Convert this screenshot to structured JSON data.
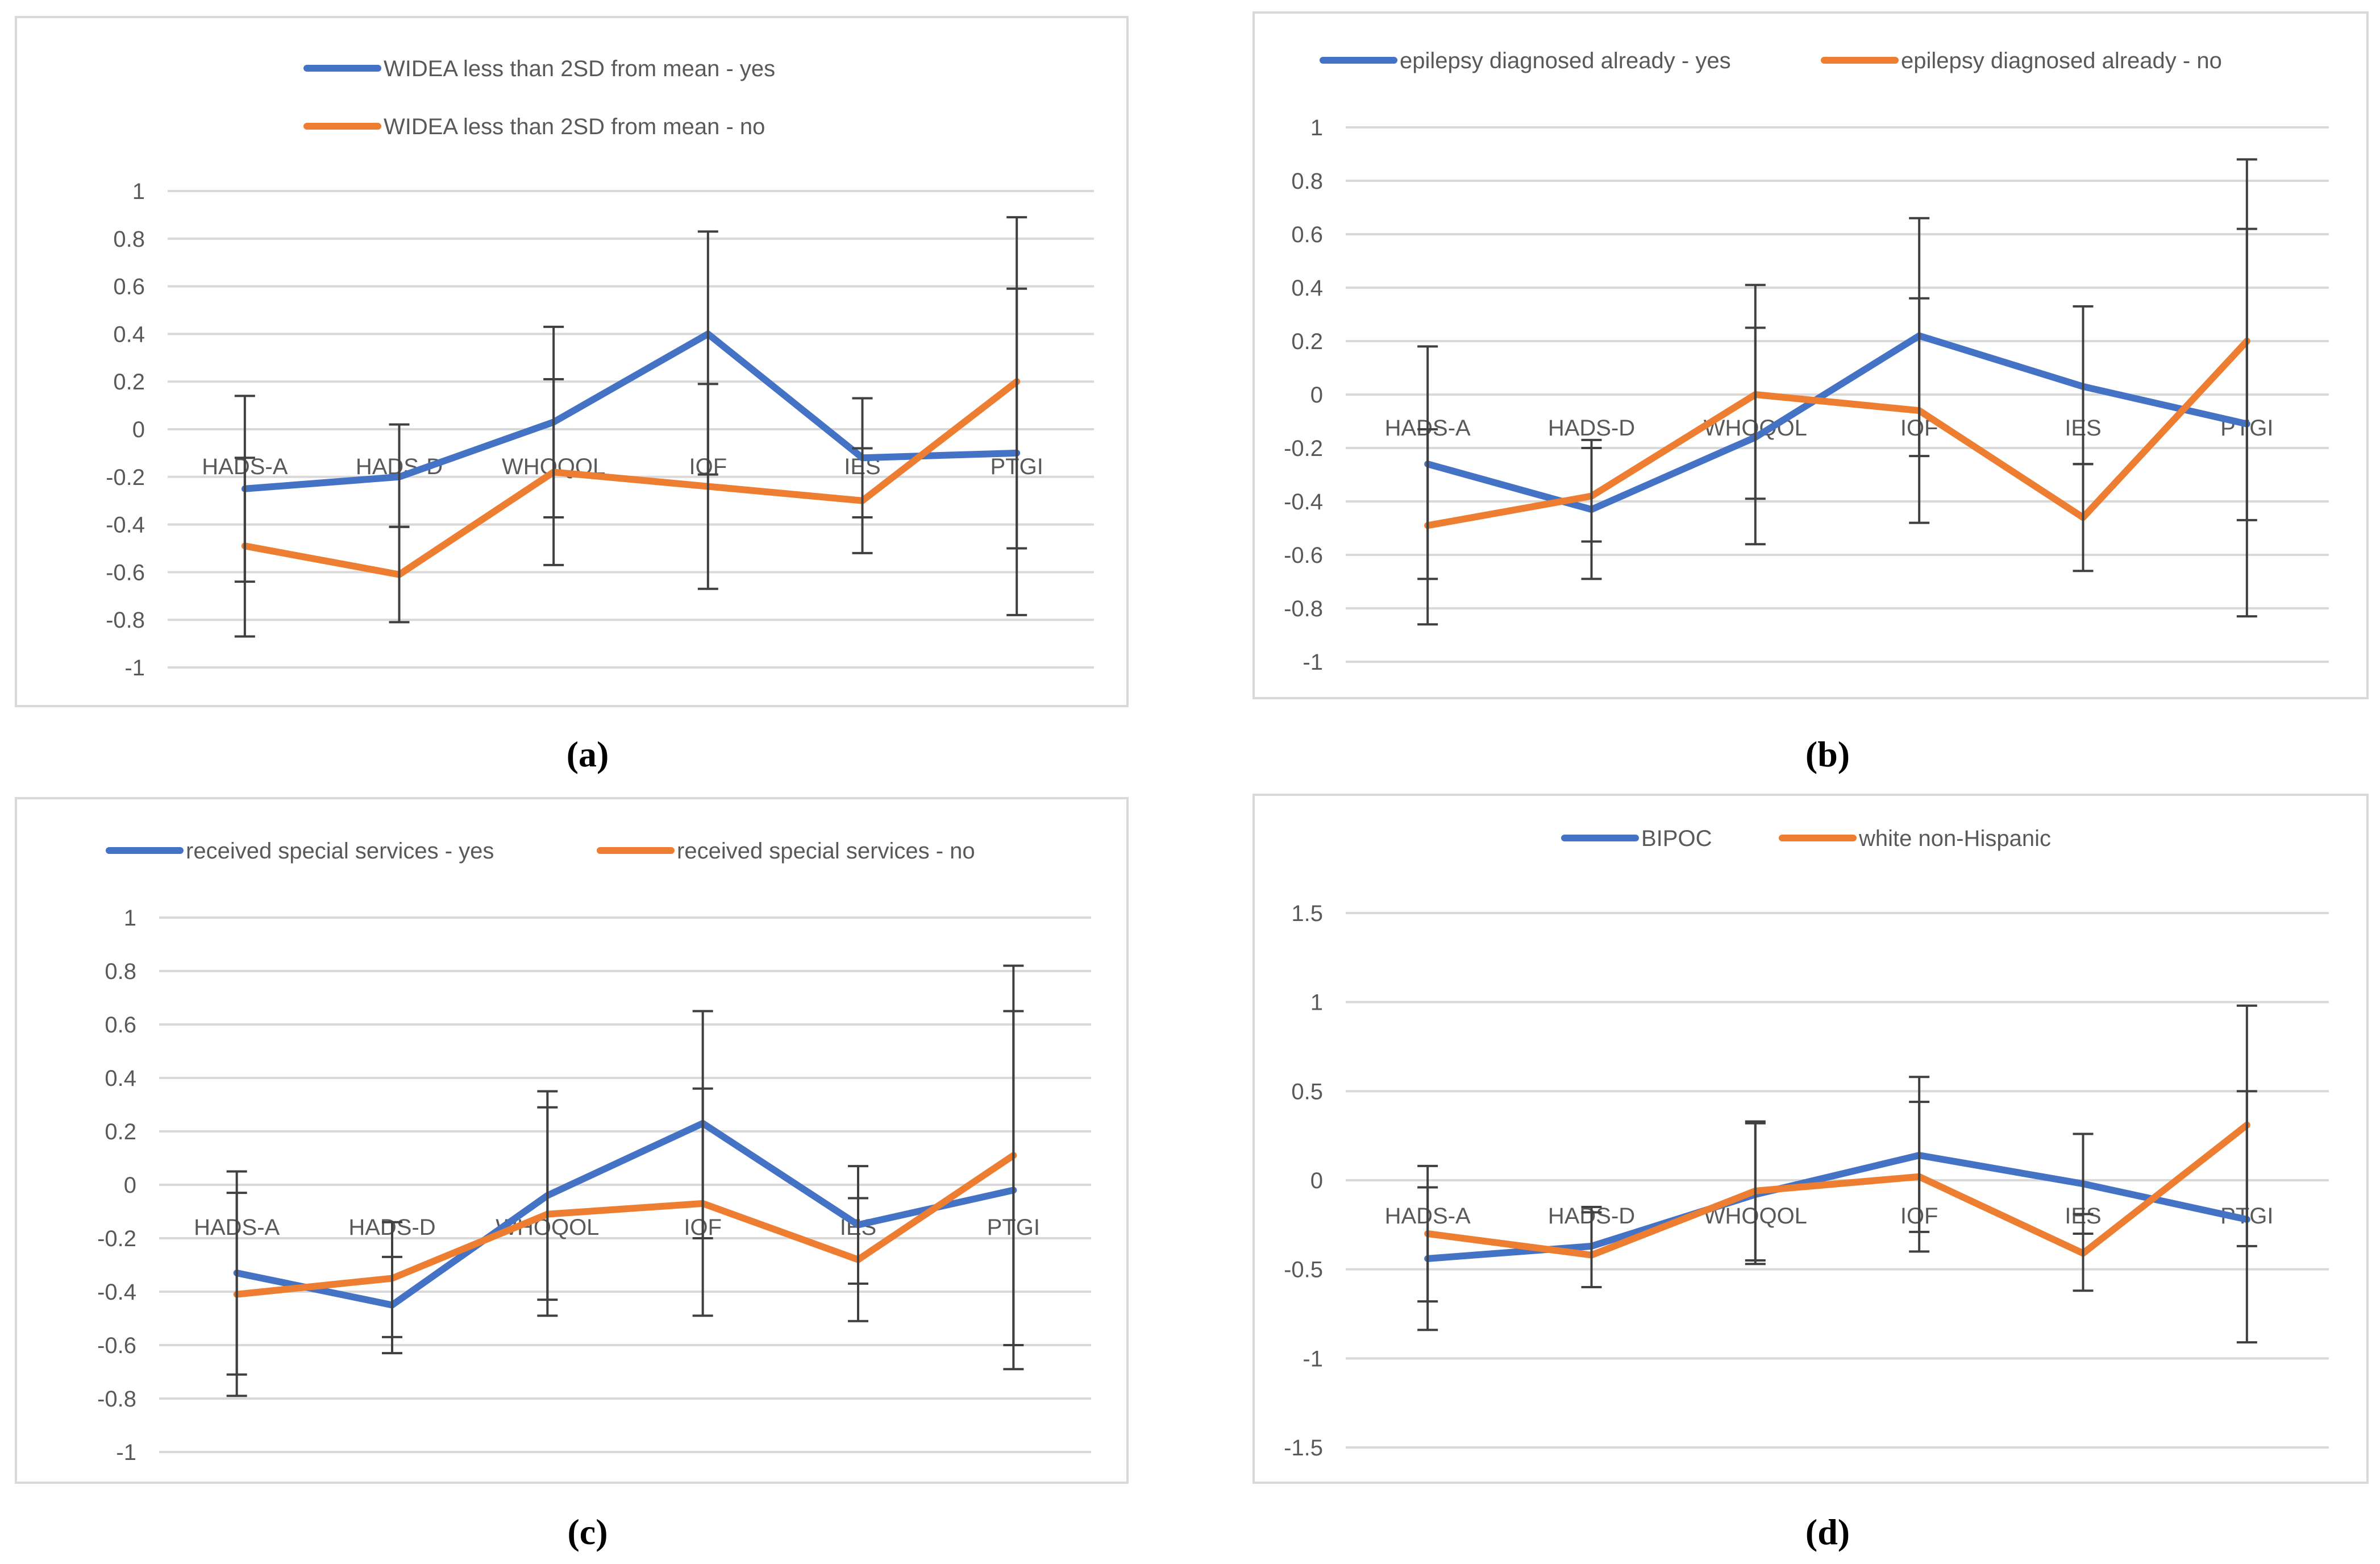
{
  "chart_data": [
    {
      "type": "line",
      "panel": "a",
      "caption": "(a)",
      "categories": [
        "HADS-A",
        "HADS-D",
        "WHOQOL",
        "IOF",
        "IES",
        "PTGI"
      ],
      "ylim": [
        -1,
        1
      ],
      "yticks": [
        1,
        0.8,
        0.6,
        0.4,
        0.2,
        0,
        -0.2,
        -0.4,
        -0.6,
        -0.8,
        -1
      ],
      "ytick_labels": [
        "1",
        "0.8",
        "0.6",
        "0.4",
        "0.2",
        "0",
        "-0.2",
        "-0.4",
        "-0.6",
        "-0.8",
        "-1"
      ],
      "legend_position": "top-stacked",
      "series": [
        {
          "name": "WIDEA less than 2SD from mean - yes",
          "color": "#4472c4",
          "values": [
            -0.25,
            -0.2,
            0.03,
            0.4,
            -0.12,
            -0.1
          ],
          "err_low": [
            -0.64,
            -0.41,
            -0.37,
            -0.19,
            -0.37,
            -0.5
          ],
          "err_high": [
            0.14,
            0.02,
            0.43,
            0.83,
            0.13,
            0.59
          ]
        },
        {
          "name": "WIDEA less than 2SD from mean - no",
          "color": "#ed7d31",
          "values": [
            -0.49,
            -0.61,
            -0.18,
            -0.24,
            -0.3,
            0.2
          ],
          "err_low": [
            -0.87,
            -0.81,
            -0.57,
            -0.67,
            -0.52,
            -0.78
          ],
          "err_high": [
            -0.12,
            -0.41,
            0.21,
            0.19,
            -0.08,
            0.89
          ]
        }
      ]
    },
    {
      "type": "line",
      "panel": "b",
      "caption": "(b)",
      "categories": [
        "HADS-A",
        "HADS-D",
        "WHOQOL",
        "IOF",
        "IES",
        "PTGI"
      ],
      "ylim": [
        -1,
        1
      ],
      "yticks": [
        1,
        0.8,
        0.6,
        0.4,
        0.2,
        0,
        -0.2,
        -0.4,
        -0.6,
        -0.8,
        -1
      ],
      "ytick_labels": [
        "1",
        "0.8",
        "0.6",
        "0.4",
        "0.2",
        "0",
        "-0.2",
        "-0.4",
        "-0.6",
        "-0.8",
        "-1"
      ],
      "legend_position": "top",
      "series": [
        {
          "name": "epilepsy diagnosed already - yes",
          "color": "#4472c4",
          "values": [
            -0.26,
            -0.43,
            -0.16,
            0.22,
            0.03,
            -0.11
          ],
          "err_low": [
            -0.69,
            -0.69,
            -0.56,
            -0.23,
            -0.26,
            -0.83
          ],
          "err_high": [
            0.18,
            -0.17,
            0.25,
            0.66,
            0.33,
            0.62
          ]
        },
        {
          "name": "epilepsy diagnosed already - no",
          "color": "#ed7d31",
          "values": [
            -0.49,
            -0.38,
            0.0,
            -0.06,
            -0.46,
            0.2
          ],
          "err_low": [
            -0.86,
            -0.55,
            -0.39,
            -0.48,
            -0.66,
            -0.47
          ],
          "err_high": [
            -0.13,
            -0.2,
            0.41,
            0.36,
            -0.26,
            0.88
          ]
        }
      ]
    },
    {
      "type": "line",
      "panel": "c",
      "caption": "(c)",
      "categories": [
        "HADS-A",
        "HADS-D",
        "WHOQOL",
        "IOF",
        "IES",
        "PTGI"
      ],
      "ylim": [
        -1,
        1
      ],
      "yticks": [
        1,
        0.8,
        0.6,
        0.4,
        0.2,
        0,
        -0.2,
        -0.4,
        -0.6,
        -0.8,
        -1
      ],
      "ytick_labels": [
        "1",
        "0.8",
        "0.6",
        "0.4",
        "0.2",
        "0",
        "-0.2",
        "-0.4",
        "-0.6",
        "-0.8",
        "-1"
      ],
      "legend_position": "top",
      "series": [
        {
          "name": "received special services - yes",
          "color": "#4472c4",
          "values": [
            -0.33,
            -0.45,
            -0.04,
            0.23,
            -0.15,
            -0.02
          ],
          "err_low": [
            -0.71,
            -0.63,
            -0.43,
            -0.2,
            -0.37,
            -0.69
          ],
          "err_high": [
            0.05,
            -0.27,
            0.35,
            0.65,
            0.07,
            0.65
          ]
        },
        {
          "name": "received special services - no",
          "color": "#ed7d31",
          "values": [
            -0.41,
            -0.35,
            -0.11,
            -0.07,
            -0.28,
            0.11
          ],
          "err_low": [
            -0.79,
            -0.57,
            -0.49,
            -0.49,
            -0.51,
            -0.6
          ],
          "err_high": [
            -0.03,
            -0.14,
            0.29,
            0.36,
            -0.05,
            0.82
          ]
        }
      ]
    },
    {
      "type": "line",
      "panel": "d",
      "caption": "(d)",
      "categories": [
        "HADS-A",
        "HADS-D",
        "WHOQOL",
        "IOF",
        "IES",
        "PTGI"
      ],
      "ylim": [
        -1.5,
        1.5
      ],
      "yticks": [
        1.5,
        1,
        0.5,
        0,
        -0.5,
        -1,
        -1.5
      ],
      "ytick_labels": [
        "1.5",
        "1",
        "0.5",
        "0",
        "-0.5",
        "-1",
        "-1.5"
      ],
      "legend_position": "top",
      "series": [
        {
          "name": "BIPOC",
          "color": "#4472c4",
          "values": [
            -0.44,
            -0.37,
            -0.08,
            0.14,
            -0.02,
            -0.22
          ],
          "err_low": [
            -0.84,
            -0.6,
            -0.47,
            -0.29,
            -0.3,
            -0.91
          ],
          "err_high": [
            -0.04,
            -0.15,
            0.32,
            0.58,
            0.26,
            0.5
          ]
        },
        {
          "name": "white non-Hispanic",
          "color": "#ed7d31",
          "values": [
            -0.3,
            -0.42,
            -0.06,
            0.02,
            -0.41,
            0.31
          ],
          "err_low": [
            -0.68,
            -0.6,
            -0.45,
            -0.4,
            -0.62,
            -0.37
          ],
          "err_high": [
            0.08,
            -0.18,
            0.33,
            0.44,
            -0.19,
            0.98
          ]
        }
      ]
    }
  ]
}
